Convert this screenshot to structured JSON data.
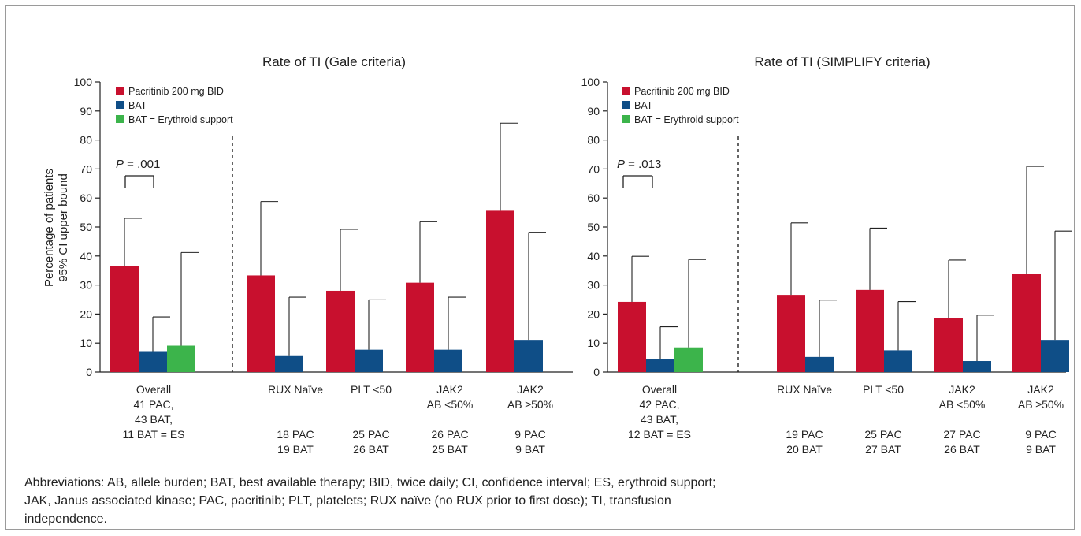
{
  "y_axis_title_lines": [
    "Percentage of patients",
    "95% CI upper bound"
  ],
  "legend_items": [
    {
      "label": "Pacritinib 200 mg BID",
      "color": "#c8102e"
    },
    {
      "label": "BAT",
      "color": "#0f4e87"
    },
    {
      "label": "BAT = Erythroid support",
      "color": "#3cb44b"
    }
  ],
  "footnote": "Abbreviations: AB, allele burden; BAT, best available therapy; BID, twice daily; CI, confidence interval; ES, erythroid support; JAK, Janus associated kinase; PAC, pacritinib; PLT, platelets; RUX naïve (no RUX prior to first dose); TI, transfusion independence.",
  "chart_data": [
    {
      "type": "bar",
      "title": "Rate of TI (Gale criteria)",
      "ylabel": "Percentage of patients 95% CI upper bound",
      "ylim": [
        0,
        100
      ],
      "yticks": [
        0,
        10,
        20,
        30,
        40,
        50,
        60,
        70,
        80,
        90,
        100
      ],
      "grid": false,
      "legend_position": "top-left",
      "annotation": {
        "prefix": "P",
        "text": " = .001",
        "between": "Overall"
      },
      "groups": [
        {
          "name_lines": [
            "Overall"
          ],
          "n_lines": [
            "41 PAC,",
            "43 BAT,",
            "11 BAT = ES"
          ],
          "bars": [
            {
              "series": "Pacritinib 200 mg BID",
              "value": 36.5,
              "ci_upper": 53
            },
            {
              "series": "BAT",
              "value": 7.2,
              "ci_upper": 19
            },
            {
              "series": "BAT = Erythroid support",
              "value": 9.1,
              "ci_upper": 41.2
            }
          ]
        },
        {
          "name_lines": [
            "RUX Naïve"
          ],
          "n_lines": [
            "18 PAC",
            "19 BAT"
          ],
          "bars": [
            {
              "series": "Pacritinib 200 mg BID",
              "value": 33.3,
              "ci_upper": 58.8
            },
            {
              "series": "BAT",
              "value": 5.5,
              "ci_upper": 25.8
            }
          ]
        },
        {
          "name_lines": [
            "PLT <50"
          ],
          "n_lines": [
            "25 PAC",
            "26 BAT"
          ],
          "bars": [
            {
              "series": "Pacritinib 200 mg BID",
              "value": 28,
              "ci_upper": 49.2
            },
            {
              "series": "BAT",
              "value": 7.7,
              "ci_upper": 24.9
            }
          ]
        },
        {
          "name_lines": [
            "JAK2",
            "AB <50%"
          ],
          "n_lines": [
            "26 PAC",
            "25 BAT"
          ],
          "bars": [
            {
              "series": "Pacritinib 200 mg BID",
              "value": 30.8,
              "ci_upper": 51.8
            },
            {
              "series": "BAT",
              "value": 7.7,
              "ci_upper": 25.8
            }
          ]
        },
        {
          "name_lines": [
            "JAK2",
            "AB ≥50%"
          ],
          "n_lines": [
            "9 PAC",
            "9 BAT"
          ],
          "bars": [
            {
              "series": "Pacritinib 200 mg BID",
              "value": 55.6,
              "ci_upper": 85.8
            },
            {
              "series": "BAT",
              "value": 11.1,
              "ci_upper": 48.2
            }
          ]
        }
      ]
    },
    {
      "type": "bar",
      "title": "Rate of TI (SIMPLIFY criteria)",
      "ylim": [
        0,
        100
      ],
      "yticks": [
        0,
        10,
        20,
        30,
        40,
        50,
        60,
        70,
        80,
        90,
        100
      ],
      "grid": false,
      "legend_position": "top-left",
      "annotation": {
        "prefix": "P",
        "text": " = .013",
        "between": "Overall"
      },
      "groups": [
        {
          "name_lines": [
            "Overall"
          ],
          "n_lines": [
            "42 PAC,",
            "43 BAT,",
            "12 BAT = ES"
          ],
          "bars": [
            {
              "series": "Pacritinib 200 mg BID",
              "value": 24.2,
              "ci_upper": 39.9
            },
            {
              "series": "BAT",
              "value": 4.5,
              "ci_upper": 15.6
            },
            {
              "series": "BAT = Erythroid support",
              "value": 8.5,
              "ci_upper": 38.8
            }
          ]
        },
        {
          "name_lines": [
            "RUX Naïve"
          ],
          "n_lines": [
            "19 PAC",
            "20 BAT"
          ],
          "bars": [
            {
              "series": "Pacritinib 200 mg BID",
              "value": 26.6,
              "ci_upper": 51.4
            },
            {
              "series": "BAT",
              "value": 5.2,
              "ci_upper": 24.8
            }
          ]
        },
        {
          "name_lines": [
            "PLT <50"
          ],
          "n_lines": [
            "25 PAC",
            "27 BAT"
          ],
          "bars": [
            {
              "series": "Pacritinib 200 mg BID",
              "value": 28.3,
              "ci_upper": 49.6
            },
            {
              "series": "BAT",
              "value": 7.5,
              "ci_upper": 24.3
            }
          ]
        },
        {
          "name_lines": [
            "JAK2",
            "AB <50%"
          ],
          "n_lines": [
            "27 PAC",
            "26 BAT"
          ],
          "bars": [
            {
              "series": "Pacritinib 200 mg BID",
              "value": 18.5,
              "ci_upper": 38.6
            },
            {
              "series": "BAT",
              "value": 3.8,
              "ci_upper": 19.6
            }
          ]
        },
        {
          "name_lines": [
            "JAK2",
            "AB ≥50%"
          ],
          "n_lines": [
            "9 PAC",
            "9 BAT"
          ],
          "bars": [
            {
              "series": "Pacritinib 200 mg BID",
              "value": 33.8,
              "ci_upper": 70.9
            },
            {
              "series": "BAT",
              "value": 11.1,
              "ci_upper": 48.6
            }
          ]
        }
      ]
    }
  ]
}
